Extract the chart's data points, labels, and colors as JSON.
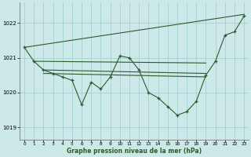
{
  "title": "Graphe pression niveau de la mer (hPa)",
  "bg_color": "#cce8e8",
  "grid_color": "#9ecece",
  "line_color": "#2d5a2d",
  "yticks": [
    1019,
    1020,
    1021,
    1022
  ],
  "xlim": [
    -0.5,
    23.5
  ],
  "ylim": [
    1018.65,
    1022.6
  ],
  "xticks": [
    0,
    1,
    2,
    3,
    4,
    5,
    6,
    7,
    8,
    9,
    10,
    11,
    12,
    13,
    14,
    15,
    16,
    17,
    18,
    19,
    20,
    21,
    22,
    23
  ],
  "main_line": {
    "x": [
      0,
      1,
      2,
      3,
      4,
      5,
      6,
      7,
      8,
      9,
      10,
      11,
      12,
      13,
      14,
      15,
      16,
      17,
      18,
      19,
      20,
      21,
      22,
      23
    ],
    "y": [
      1021.3,
      1020.9,
      1020.65,
      1020.55,
      1020.45,
      1020.35,
      1019.65,
      1020.3,
      1020.1,
      1020.45,
      1021.05,
      1021.0,
      1020.65,
      1020.0,
      1019.85,
      1019.6,
      1019.35,
      1019.45,
      1019.75,
      1020.5,
      1020.9,
      1021.65,
      1021.75,
      1022.2
    ]
  },
  "diag_line": {
    "x": [
      0,
      23
    ],
    "y": [
      1021.3,
      1022.25
    ]
  },
  "flat_line1": {
    "x": [
      1,
      19
    ],
    "y": [
      1020.9,
      1020.85
    ]
  },
  "flat_line2": {
    "x": [
      2,
      19
    ],
    "y": [
      1020.65,
      1020.55
    ]
  },
  "flat_line3": {
    "x": [
      2,
      19
    ],
    "y": [
      1020.55,
      1020.45
    ]
  }
}
